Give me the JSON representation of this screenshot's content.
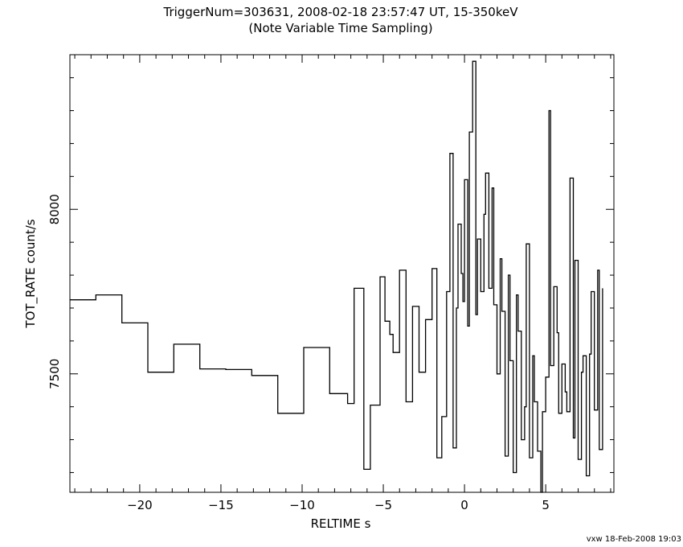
{
  "chart_data": {
    "type": "line",
    "step": true,
    "title": "TriggerNum=303631, 2008-02-18 23:57:47 UT, 15-350keV",
    "subtitle": "(Note Variable Time Sampling)",
    "xlabel": "RELTIME  s",
    "ylabel": "TOT_RATE  count/s",
    "xlim": [
      -24.3,
      9.2
    ],
    "ylim": [
      7140,
      8470
    ],
    "x_ticks": [
      -20,
      -15,
      -10,
      -5,
      0,
      5
    ],
    "x_tick_labels": [
      "−20",
      "−15",
      "−10",
      "−5",
      "0",
      "5"
    ],
    "y_ticks": [
      7500,
      8000
    ],
    "y_tick_labels": [
      "7500",
      "8000"
    ],
    "x_minor_step": 1,
    "y_minor_step": 100,
    "grid": false,
    "series": [
      {
        "x": [
          -24.3,
          -22.7,
          -21.1,
          -19.5,
          -17.9,
          -16.3,
          -14.7,
          -13.1,
          -11.5,
          -9.9,
          -8.3,
          -7.2,
          -6.8,
          -6.2,
          -5.8,
          -5.2,
          -4.9,
          -4.6,
          -4.4,
          -4.0,
          -3.6,
          -3.2,
          -2.8,
          -2.4,
          -2.0,
          -1.7,
          -1.4,
          -1.1,
          -0.9,
          -0.7,
          -0.5,
          -0.4,
          -0.2,
          -0.1,
          0.0,
          0.2,
          0.3,
          0.5,
          0.7,
          0.8,
          1.0,
          1.2,
          1.3,
          1.5,
          1.7,
          1.8,
          2.0,
          2.2,
          2.3,
          2.5,
          2.7,
          2.8,
          3.0,
          3.2,
          3.3,
          3.5,
          3.7,
          3.8,
          4.0,
          4.2,
          4.3,
          4.5,
          4.7,
          4.8,
          5.0,
          5.2,
          5.3,
          5.5,
          5.7,
          5.8,
          6.0,
          6.2,
          6.3,
          6.5,
          6.7,
          6.8,
          7.0,
          7.2,
          7.3,
          7.5,
          7.7,
          7.8,
          8.0,
          8.2,
          8.3
        ],
        "y": [
          7725,
          7740,
          7655,
          7505,
          7590,
          7515,
          7513,
          7495,
          7380,
          7580,
          7440,
          7410,
          7760,
          7210,
          7405,
          7795,
          7660,
          7620,
          7565,
          7815,
          7415,
          7705,
          7505,
          7665,
          7820,
          7245,
          7370,
          7750,
          8170,
          7275,
          7700,
          7955,
          7805,
          7720,
          8090,
          7645,
          8235,
          8450,
          7680,
          7910,
          7750,
          7985,
          8110,
          7760,
          8065,
          7710,
          7500,
          7850,
          7690,
          7250,
          7800,
          7540,
          7200,
          7740,
          7630,
          7300,
          7400,
          7895,
          7245,
          7555,
          7415,
          7265,
          7140,
          7385,
          7490,
          8300,
          7525,
          7765,
          7625,
          7380,
          7530,
          7445,
          7385,
          8095,
          7305,
          7845,
          7240,
          7505,
          7555,
          7190,
          7560,
          7750,
          7390,
          7815,
          7270
        ]
      }
    ],
    "series_x_end": 8.5,
    "series_last_y": 7760
  },
  "footer": "vxw 18-Feb-2008 19:03"
}
